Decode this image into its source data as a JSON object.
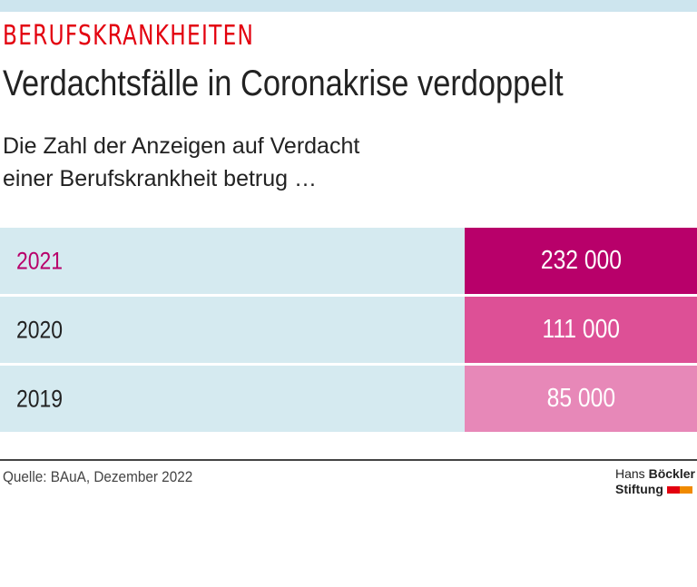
{
  "header": {
    "kicker": "BERUFSKRANKHEITEN",
    "title": "Verdachtsfälle in Coronakrise verdoppelt",
    "subtitle_line1": "Die Zahl der Anzeigen auf Verdacht",
    "subtitle_line2": "einer Berufskrankheit betrug …"
  },
  "chart_data": {
    "type": "table",
    "categories": [
      "2021",
      "2020",
      "2019"
    ],
    "values": [
      232000,
      111000,
      85000
    ],
    "value_labels": [
      "232 000",
      "111 000",
      "85 000"
    ],
    "colors": [
      "#b8006a",
      "#dd5096",
      "#e788b8"
    ],
    "label_colors": [
      "#b8006a",
      "#222222",
      "#222222"
    ]
  },
  "footer": {
    "source": "Quelle: BAuA, Dezember 2022",
    "logo_line1_a": "Hans",
    "logo_line1_b": "Böckler",
    "logo_line2": "Stiftung",
    "logo_colors": [
      "#e3000f",
      "#f08a00"
    ]
  }
}
